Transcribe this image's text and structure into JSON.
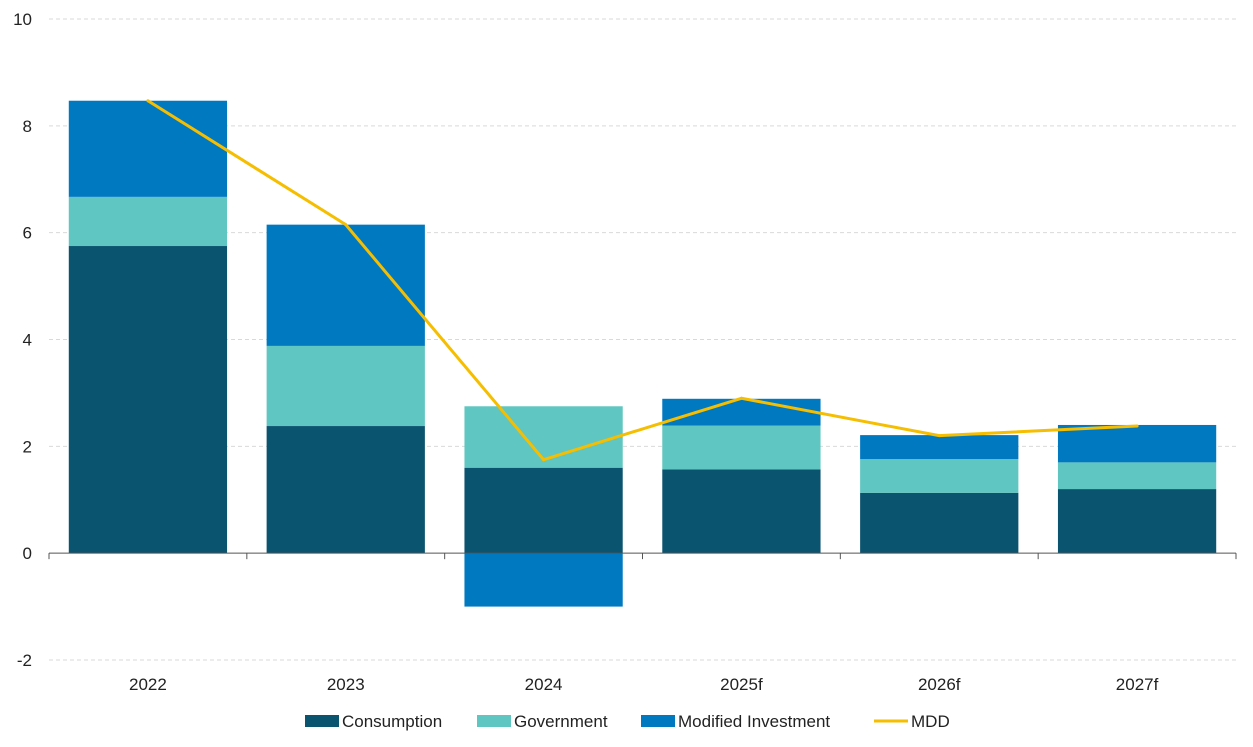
{
  "chart_data": {
    "type": "bar",
    "stacked": true,
    "categories": [
      "2022",
      "2023",
      "2024",
      "2025f",
      "2026f",
      "2027f"
    ],
    "series": [
      {
        "name": "Consumption",
        "kind": "bar",
        "color": "#0b5470",
        "values": [
          5.75,
          2.38,
          1.6,
          1.57,
          1.13,
          1.2
        ]
      },
      {
        "name": "Government",
        "kind": "bar",
        "color": "#5fc6c1",
        "values": [
          0.92,
          1.5,
          1.15,
          0.82,
          0.63,
          0.5
        ]
      },
      {
        "name": "Modified Investment",
        "kind": "bar",
        "color": "#0079c1",
        "values": [
          1.8,
          2.27,
          -1.0,
          0.5,
          0.45,
          0.7
        ]
      },
      {
        "name": "MDD",
        "kind": "line",
        "color": "#f5be00",
        "values": [
          8.47,
          6.15,
          1.75,
          2.9,
          2.2,
          2.38
        ]
      }
    ],
    "ylim": [
      -2,
      10
    ],
    "yticks": [
      -2,
      0,
      2,
      4,
      6,
      8,
      10
    ],
    "ytick_labels": [
      "-2",
      "0",
      "2",
      "4",
      "6",
      "8",
      "10"
    ],
    "grid": true,
    "legend": "bottom",
    "title": "",
    "xlabel": "",
    "ylabel": ""
  }
}
